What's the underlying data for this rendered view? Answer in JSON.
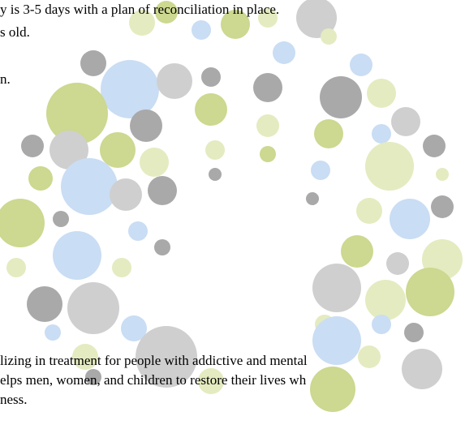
{
  "text_lines": [
    "y is 3-5 days with a plan of reconciliation in place.",
    "s old.",
    "n.",
    "lizing in treatment for people with addictive and mental",
    "elps men, women, and children to restore their lives wh",
    "ness."
  ]
}
